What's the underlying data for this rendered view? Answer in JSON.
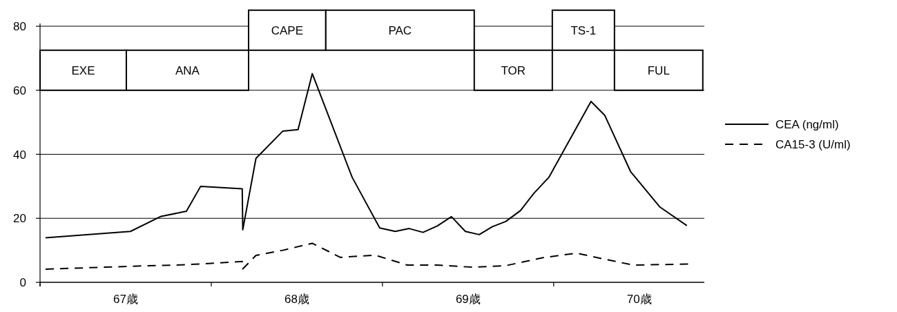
{
  "chart_data": {
    "type": "line",
    "xlim": [
      67,
      70.88
    ],
    "ylim": [
      0,
      80
    ],
    "yticks": [
      0,
      20,
      40,
      60,
      80
    ],
    "xticks": [
      {
        "value": 67,
        "label": null
      },
      {
        "value": 67.5,
        "label": "67歳"
      },
      {
        "value": 68,
        "label": null
      },
      {
        "value": 68.5,
        "label": "68歳"
      },
      {
        "value": 69,
        "label": null
      },
      {
        "value": 69.5,
        "label": "69歳"
      },
      {
        "value": 70,
        "label": null
      },
      {
        "value": 70.5,
        "label": "70歳"
      }
    ],
    "grid": "y",
    "legend": "right",
    "series": [
      {
        "name": "CEA (ng/ml)",
        "color": "#000000",
        "line_style": "solid",
        "x": [
          67.032,
          67.528,
          67.707,
          67.855,
          67.938,
          68.181,
          68.184,
          68.261,
          68.417,
          68.507,
          68.59,
          68.823,
          68.984,
          69.075,
          69.156,
          69.237,
          69.32,
          69.403,
          69.484,
          69.565,
          69.642,
          69.72,
          69.806,
          69.884,
          69.972,
          70.218,
          70.298,
          70.449,
          70.621,
          70.778
        ],
        "values": [
          13.9,
          15.9,
          20.6,
          22.2,
          30.0,
          29.2,
          16.4,
          38.7,
          47.2,
          47.7,
          65.2,
          32.8,
          17.0,
          15.9,
          16.8,
          15.6,
          17.6,
          20.5,
          15.9,
          14.9,
          17.4,
          19.0,
          22.4,
          27.8,
          32.8,
          56.5,
          52.2,
          34.6,
          23.5,
          17.7
        ]
      },
      {
        "name": "CA15-3 (U/ml)",
        "color": "#000000",
        "line_style": "dashed",
        "x": [
          67.032,
          67.528,
          67.855,
          68.181,
          68.184,
          68.261,
          68.417,
          68.59,
          68.754,
          68.956,
          69.145,
          69.318,
          69.528,
          69.72,
          69.938,
          70.133,
          70.462,
          70.785
        ],
        "values": [
          4.1,
          5.0,
          5.5,
          6.5,
          4.2,
          8.4,
          10.0,
          12.2,
          7.8,
          8.5,
          5.4,
          5.4,
          4.7,
          5.2,
          7.7,
          9.1,
          5.4,
          5.7
        ]
      }
    ],
    "bands": [
      {
        "axis": "x",
        "from": 67,
        "to": 67.504,
        "label": "EXE"
      },
      {
        "axis": "x",
        "from": 67.504,
        "to": 68.218,
        "label": "ANA"
      },
      {
        "axis": "x",
        "from": 69.536,
        "to": 69.992,
        "label": "TOR"
      },
      {
        "axis": "x",
        "from": 70.355,
        "to": 70.871,
        "label": "FUL"
      },
      {
        "axis": "x",
        "from": 68.218,
        "to": 68.669,
        "label": "CAPE"
      },
      {
        "axis": "x",
        "from": 68.669,
        "to": 69.536,
        "label": "PAC"
      },
      {
        "axis": "x",
        "from": 69.992,
        "to": 70.355,
        "label": "TS-1"
      }
    ]
  }
}
